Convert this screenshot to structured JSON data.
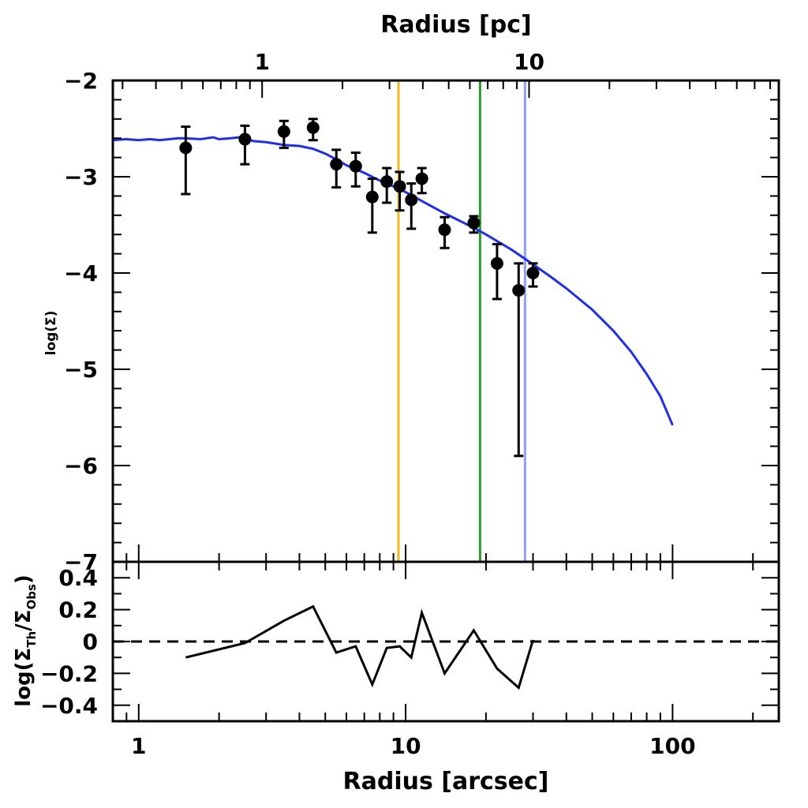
{
  "chart_data": [
    {
      "panel": "top",
      "type": "scatter",
      "x_scale": "log",
      "xlim": [
        0.8,
        250
      ],
      "ylim": [
        -7,
        -2
      ],
      "ylabel": "log(Σ)",
      "top_axis_label": "Radius [pc]",
      "top_axis_ticks": [
        {
          "value": 1,
          "label": "1",
          "radius_arcsec": 2.9
        },
        {
          "value": 10,
          "label": "10",
          "radius_arcsec": 29
        }
      ],
      "y_ticks": [
        {
          "value": -2,
          "label": "−2"
        },
        {
          "value": -3,
          "label": "−3"
        },
        {
          "value": -4,
          "label": "−4"
        },
        {
          "value": -5,
          "label": "−5"
        },
        {
          "value": -6,
          "label": "−6"
        },
        {
          "value": -7,
          "label": "−7"
        }
      ],
      "observed": {
        "x": [
          1.5,
          2.5,
          3.5,
          4.5,
          5.5,
          6.5,
          7.5,
          8.5,
          9.5,
          10.5,
          11.5,
          14,
          18,
          22,
          26.5,
          30
        ],
        "y": [
          -2.7,
          -2.61,
          -2.53,
          -2.49,
          -2.87,
          -2.89,
          -3.21,
          -3.05,
          -3.1,
          -3.24,
          -3.02,
          -3.55,
          -3.48,
          -3.9,
          -4.18,
          -4.0
        ],
        "yerr_low": [
          0.48,
          0.26,
          0.17,
          0.13,
          0.24,
          0.21,
          0.37,
          0.22,
          0.25,
          0.3,
          0.15,
          0.19,
          0.1,
          0.37,
          1.72,
          0.14
        ],
        "yerr_high": [
          0.22,
          0.14,
          0.11,
          0.09,
          0.15,
          0.14,
          0.19,
          0.14,
          0.15,
          0.17,
          0.11,
          0.13,
          0.07,
          0.2,
          0.28,
          0.1
        ],
        "color": "#000000"
      },
      "model": {
        "x": [
          0.8,
          0.9,
          1.0,
          1.1,
          1.2,
          1.3,
          1.4,
          1.5,
          1.7,
          1.9,
          2.0,
          2.2,
          2.4,
          2.7,
          3.0,
          3.5,
          4.0,
          4.5,
          5.0,
          5.5,
          6.0,
          7.0,
          8.0,
          9.0,
          10,
          12,
          14,
          16,
          18,
          20,
          25,
          30,
          35,
          40,
          50,
          60,
          70,
          80,
          90,
          100
        ],
        "y": [
          -2.62,
          -2.61,
          -2.62,
          -2.61,
          -2.62,
          -2.61,
          -2.6,
          -2.6,
          -2.61,
          -2.59,
          -2.61,
          -2.6,
          -2.59,
          -2.63,
          -2.64,
          -2.67,
          -2.68,
          -2.71,
          -2.76,
          -2.82,
          -2.88,
          -2.96,
          -3.04,
          -3.1,
          -3.16,
          -3.28,
          -3.38,
          -3.46,
          -3.53,
          -3.6,
          -3.76,
          -3.91,
          -4.04,
          -4.16,
          -4.38,
          -4.6,
          -4.82,
          -5.05,
          -5.28,
          -5.58
        ],
        "color": "#1f2fe8"
      },
      "vertical_lines": [
        {
          "x": 9.4,
          "color": "#f2b51c"
        },
        {
          "x": 19.0,
          "color": "#2a9a2a"
        },
        {
          "x": 28.0,
          "color": "#8fa0ec"
        }
      ]
    },
    {
      "panel": "bottom",
      "type": "line",
      "x_scale": "log",
      "xlim": [
        0.8,
        250
      ],
      "ylim": [
        -0.5,
        0.5
      ],
      "xlabel": "Radius [arcsec]",
      "ylabel_parts": {
        "open": "log(Σ",
        "num_sub": "Th",
        "mid": "/Σ",
        "den_sub": "Obs",
        "close": ")"
      },
      "x_ticks": [
        {
          "value": 1,
          "label": "1"
        },
        {
          "value": 10,
          "label": "10"
        },
        {
          "value": 100,
          "label": "100"
        }
      ],
      "y_ticks": [
        {
          "value": 0.4,
          "label": "0.4"
        },
        {
          "value": 0.2,
          "label": "0.2"
        },
        {
          "value": 0,
          "label": "0"
        },
        {
          "value": -0.2,
          "label": "−0.2"
        },
        {
          "value": -0.4,
          "label": "−0.4"
        }
      ],
      "residuals": {
        "x": [
          1.5,
          2.5,
          3.5,
          4.5,
          5.5,
          6.5,
          7.5,
          8.5,
          9.5,
          10.5,
          11.5,
          14,
          18,
          22,
          26.5,
          30
        ],
        "y": [
          -0.1,
          -0.01,
          0.13,
          0.22,
          -0.07,
          -0.03,
          -0.27,
          -0.04,
          -0.03,
          -0.1,
          0.18,
          -0.2,
          0.07,
          -0.17,
          -0.29,
          0.01
        ],
        "color": "#000000"
      },
      "reference_line": {
        "y": 0,
        "style": "dashed"
      }
    }
  ]
}
